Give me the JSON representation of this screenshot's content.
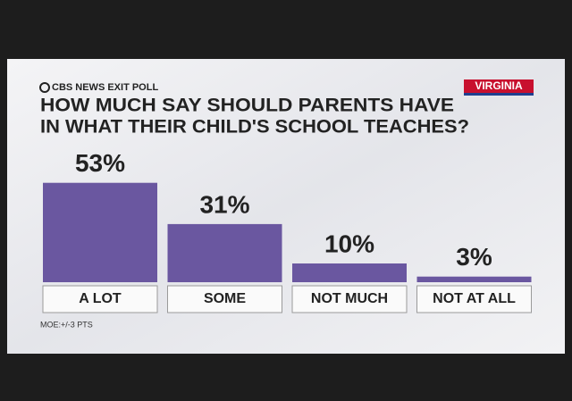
{
  "chart_data": {
    "type": "bar",
    "source": "CBS NEWS EXIT POLL",
    "region": "VIRGINIA",
    "title": [
      "HOW MUCH SAY SHOULD PARENTS HAVE",
      "IN WHAT THEIR CHILD'S SCHOOL TEACHES?"
    ],
    "categories": [
      "A LOT",
      "SOME",
      "NOT MUCH",
      "NOT AT ALL"
    ],
    "values": [
      53,
      31,
      10,
      3
    ],
    "value_labels": [
      "53%",
      "31%",
      "10%",
      "3%"
    ],
    "color": "#6a57a0",
    "note": "MOE:+/-3 PTS"
  }
}
